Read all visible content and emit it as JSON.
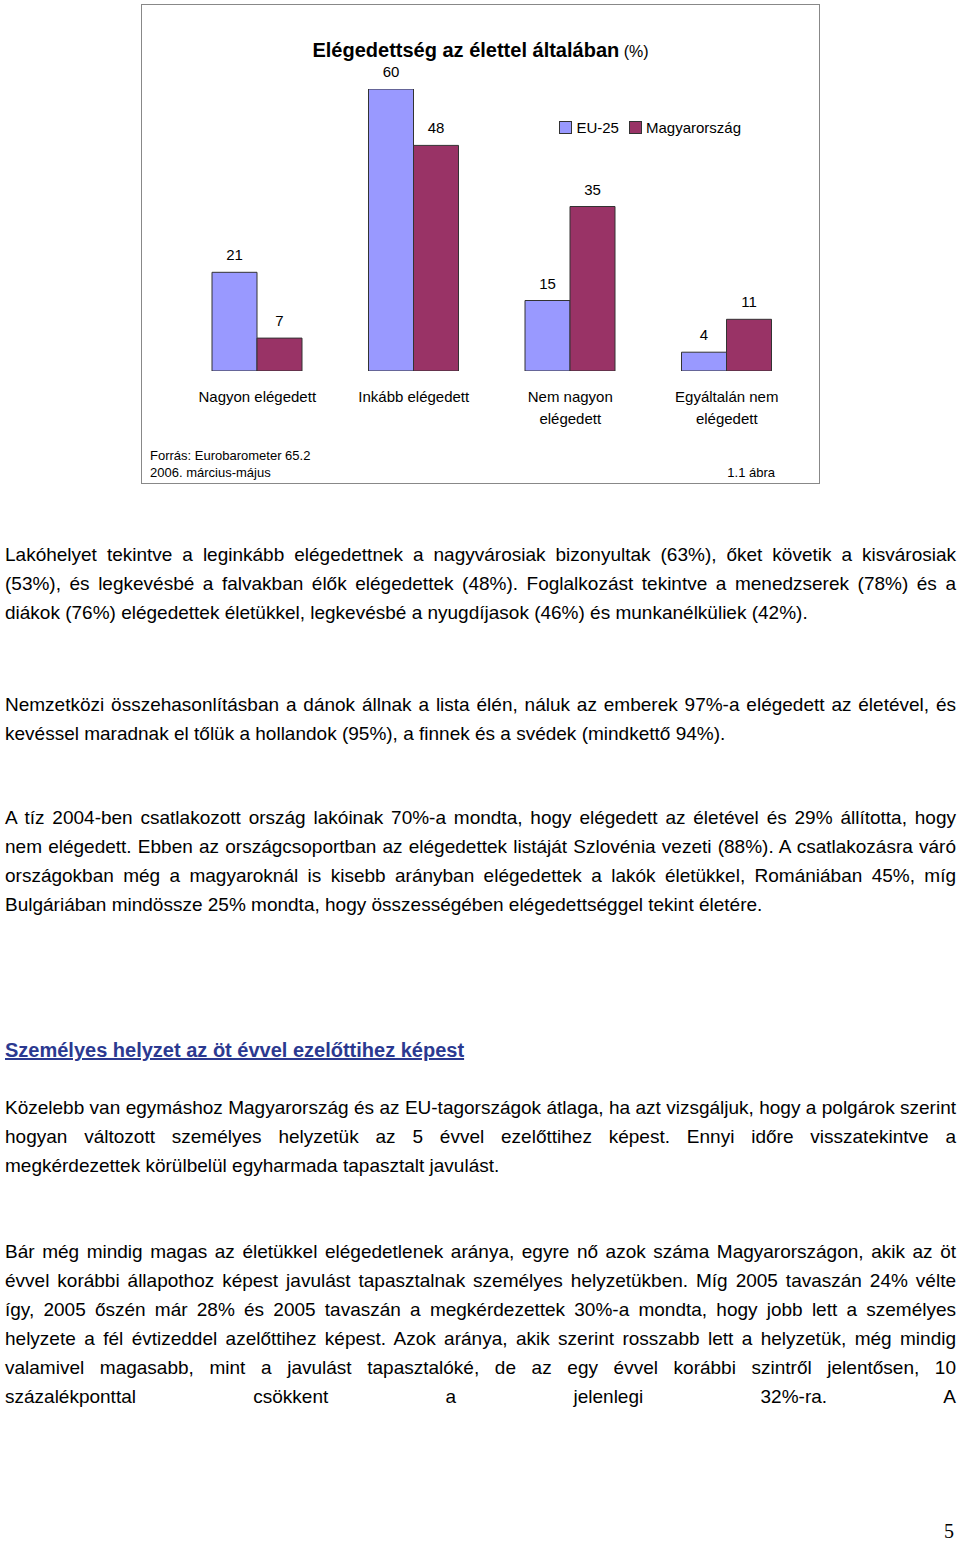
{
  "chart_data": {
    "type": "bar",
    "title": "Elégedettség az élettel általában (%)",
    "categories": [
      "Nagyon elégedett",
      "Inkább elégedett",
      "Nem nagyon elégedett",
      "Egyáltalán nem elégedett"
    ],
    "series": [
      {
        "name": "EU-25",
        "color": "#9999ff",
        "values": [
          21,
          60,
          15,
          4
        ]
      },
      {
        "name": "Magyarország",
        "color": "#993366",
        "values": [
          7,
          48,
          35,
          11
        ]
      }
    ],
    "ylim": [
      0,
      60
    ],
    "grid": false,
    "legend": "top-right",
    "data_labels": true,
    "tick_labels": "x",
    "source": [
      "Forrás: Eurobarometer 65.2",
      "2006. március-május"
    ],
    "figure_label": "1.1 ábra"
  },
  "document": {
    "paragraphs": [
      "Lakóhelyet tekintve a leginkább elégedettnek a nagyvárosiak bizonyultak (63%), őket követik a kisvárosiak (53%), és legkevésbé a falvakban élők elégedettek (48%). Foglalkozást tekintve a menedzserek (78%) és a diákok (76%) elégedettek életükkel, legkevésbé a nyugdíjasok (46%) és munkanélküliek (42%).",
      "Nemzetközi összehasonlításban a dánok állnak a lista élén, náluk az emberek 97%-a elégedett az életével, és kevéssel maradnak el tőlük a hollandok (95%), a finnek és a svédek (mindkettő 94%).",
      "A tíz 2004-ben csatlakozott ország lakóinak 70%-a mondta, hogy elégedett az életével és 29% állította, hogy nem elégedett. Ebben az országcsoportban az elégedettek listáját Szlovénia vezeti (88%). A csatlakozásra váró országokban még a magyaroknál is kisebb arányban elégedettek a lakók életükkel, Romániában 45%, míg Bulgáriában mindössze 25% mondta, hogy összességében elégedettséggel tekint életére."
    ],
    "heading": "Személyes helyzet az öt évvel ezelőttihez képest",
    "paragraphs_after": [
      "Közelebb van egymáshoz Magyarország és az EU-tagországok átlaga, ha azt vizsgáljuk, hogy a polgárok szerint hogyan változott személyes helyzetük az 5 évvel ezelőttihez képest. Ennyi időre visszatekintve a megkérdezettek körülbelül egyharmada tapasztalt javulást.",
      "Bár még mindig magas az életükkel elégedetlenek aránya, egyre nő azok száma Magyarországon, akik az öt évvel korábbi állapothoz képest javulást tapasztalnak személyes helyzetükben. Míg 2005 tavaszán 24% vélte így, 2005 őszén már 28% és 2005 tavaszán a megkérdezettek 30%-a mondta, hogy jobb lett a személyes helyzete a fél évtizeddel azelőttihez képest. Azok aránya, akik szerint rosszabb lett a helyzetük, még mindig valamivel magasabb, mint a javulást tapasztalóké, de az egy évvel korábbi szintről jelentősen, 10 százalékponttal csökkent a jelenlegi 32%-ra. A"
    ],
    "page_number": "5"
  }
}
